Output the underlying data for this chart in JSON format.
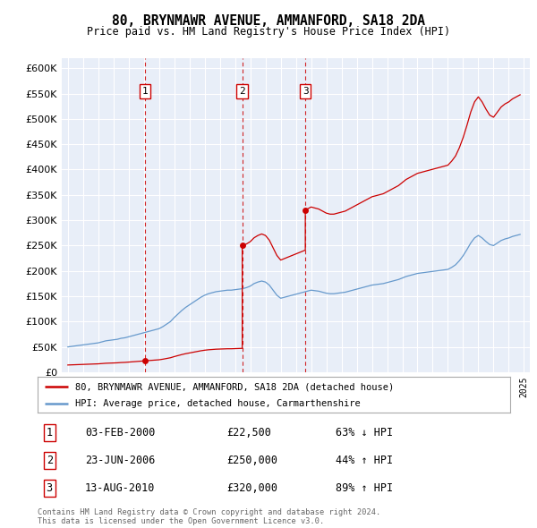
{
  "title": "80, BRYNMAWR AVENUE, AMMANFORD, SA18 2DA",
  "subtitle": "Price paid vs. HM Land Registry's House Price Index (HPI)",
  "red_label": "80, BRYNMAWR AVENUE, AMMANFORD, SA18 2DA (detached house)",
  "blue_label": "HPI: Average price, detached house, Carmarthenshire",
  "transactions": [
    {
      "num": 1,
      "date": "03-FEB-2000",
      "price": 22500,
      "pct": "63%",
      "dir": "↓",
      "year": 2000.08
    },
    {
      "num": 2,
      "date": "23-JUN-2006",
      "price": 250000,
      "pct": "44%",
      "dir": "↑",
      "year": 2006.47
    },
    {
      "num": 3,
      "date": "13-AUG-2010",
      "price": 320000,
      "pct": "89%",
      "dir": "↑",
      "year": 2010.62
    }
  ],
  "footer1": "Contains HM Land Registry data © Crown copyright and database right 2024.",
  "footer2": "This data is licensed under the Open Government Licence v3.0.",
  "ylim": [
    0,
    620000
  ],
  "yticks": [
    0,
    50000,
    100000,
    150000,
    200000,
    250000,
    300000,
    350000,
    400000,
    450000,
    500000,
    550000,
    600000
  ],
  "xlim_min": 1994.6,
  "xlim_max": 2025.4,
  "background_color": "#ffffff",
  "plot_bg": "#e8eef8",
  "grid_color": "#ffffff",
  "red_color": "#cc0000",
  "blue_color": "#6699cc",
  "dashed_color": "#cc0000"
}
